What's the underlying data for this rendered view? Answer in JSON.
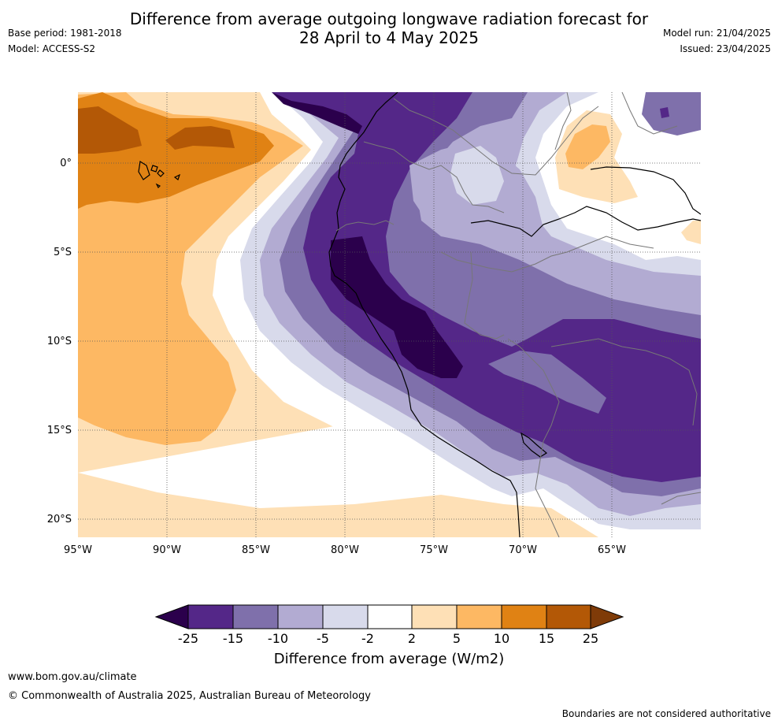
{
  "header": {
    "title_line1": "Difference from average outgoing longwave radiation forecast for",
    "title_line2": "28 April to 4 May 2025",
    "base_period": "Base period: 1981-2018",
    "model": "Model: ACCESS-S2",
    "model_run": "Model run: 21/04/2025",
    "issued": "Issued: 23/04/2025"
  },
  "map": {
    "latitude_labels": [
      "0°",
      "5°S",
      "10°S",
      "15°S",
      "20°S"
    ],
    "longitude_labels": [
      "95°W",
      "90°W",
      "85°W",
      "80°W",
      "75°W",
      "70°W",
      "65°W"
    ],
    "colors": {
      "minus25_below": "#2b004c",
      "minus25_minus15": "#542788",
      "minus15_minus10": "#7f70ab",
      "minus10_minus5": "#b2abd2",
      "minus5_minus2": "#d8daeb",
      "minus2_2": "#ffffff",
      "2_5": "#fee0b6",
      "5_10": "#fdb863",
      "10_15": "#e08214",
      "15_25": "#b35806",
      "25_above": "#7f3b08"
    }
  },
  "colorbar": {
    "ticks": [
      "-25",
      "-15",
      "-10",
      "-5",
      "-2",
      "2",
      "5",
      "10",
      "15",
      "25"
    ],
    "title": "Difference from average (W/m2)"
  },
  "footer": {
    "website": "www.bom.gov.au/climate",
    "copyright": "© Commonwealth of Australia 2025, Australian Bureau of Meteorology",
    "disclaimer": "Boundaries are not considered authoritative"
  }
}
